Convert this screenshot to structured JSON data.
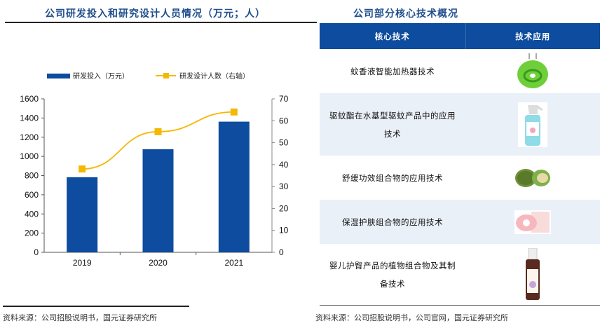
{
  "left": {
    "title": "公司研发投入和研究设计人员情况（万元；人）",
    "source": "资料来源：公司招股说明书，国元证券研究所"
  },
  "right": {
    "title": "公司部分核心技术概况",
    "source": "资料来源：公司招股说明书，公司官网，国元证券研究所",
    "headers": [
      "核心技术",
      "技术应用"
    ],
    "rows": [
      {
        "tech": "蚊香液智能加热器技术",
        "image": "green-plug-in-heater"
      },
      {
        "tech": "驱蚊酯在水基型驱蚊产品中的应用技术",
        "image": "spray-bottle"
      },
      {
        "tech": "舒缓功效组合物的应用技术",
        "image": "green-balm-tin"
      },
      {
        "tech": "保湿护肤组合物的应用技术",
        "image": "pink-cream-jar-box"
      },
      {
        "tech": "婴儿护臀产品的植物组合物及其制备技术",
        "image": "brown-pump-bottle"
      }
    ]
  },
  "chart_data": {
    "type": "bar+line",
    "categories": [
      "2019",
      "2020",
      "2021"
    ],
    "series": [
      {
        "name": "研发投入（万元）",
        "type": "bar",
        "axis": "left",
        "values": [
          783,
          1075,
          1362
        ],
        "color": "#0d4c9e"
      },
      {
        "name": "研发设计人数（右轴）",
        "type": "line",
        "axis": "right",
        "values": [
          38,
          55,
          64
        ],
        "color": "#f5b800"
      }
    ],
    "ylim": [
      0,
      1600
    ],
    "yticks": [
      "0",
      "200",
      "400",
      "600",
      "800",
      "1000",
      "1200",
      "1400",
      "1600"
    ],
    "y2lim": [
      0,
      70
    ],
    "y2ticks": [
      "0",
      "10",
      "20",
      "30",
      "40",
      "50",
      "60",
      "70"
    ],
    "legend": "top",
    "grid": false
  }
}
